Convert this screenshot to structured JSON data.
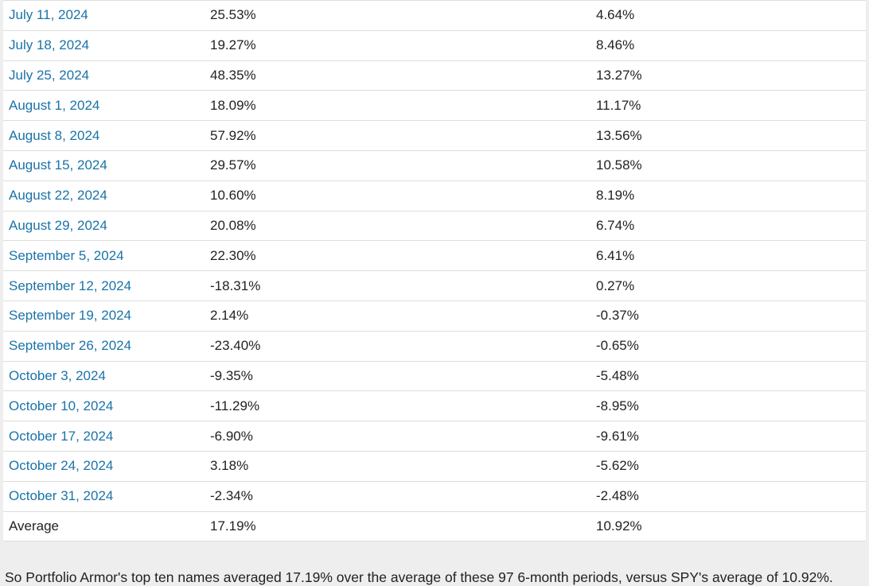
{
  "table": {
    "rows": [
      {
        "date": "July 11, 2024",
        "top_ten": "25.53%",
        "spy": "4.64%"
      },
      {
        "date": "July 18, 2024",
        "top_ten": "19.27%",
        "spy": "8.46%"
      },
      {
        "date": "July 25, 2024",
        "top_ten": "48.35%",
        "spy": "13.27%"
      },
      {
        "date": "August 1, 2024",
        "top_ten": "18.09%",
        "spy": "11.17%"
      },
      {
        "date": "August 8, 2024",
        "top_ten": "57.92%",
        "spy": "13.56%"
      },
      {
        "date": "August 15, 2024",
        "top_ten": "29.57%",
        "spy": "10.58%"
      },
      {
        "date": "August 22, 2024",
        "top_ten": "10.60%",
        "spy": "8.19%"
      },
      {
        "date": "August 29, 2024",
        "top_ten": "20.08%",
        "spy": "6.74%"
      },
      {
        "date": "September 5, 2024",
        "top_ten": "22.30%",
        "spy": "6.41%"
      },
      {
        "date": "September 12, 2024",
        "top_ten": "-18.31%",
        "spy": "0.27%"
      },
      {
        "date": "September 19, 2024",
        "top_ten": "2.14%",
        "spy": "-0.37%"
      },
      {
        "date": "September 26, 2024",
        "top_ten": "-23.40%",
        "spy": "-0.65%"
      },
      {
        "date": "October 3, 2024",
        "top_ten": "-9.35%",
        "spy": "-5.48%"
      },
      {
        "date": "October 10, 2024",
        "top_ten": "-11.29%",
        "spy": "-8.95%"
      },
      {
        "date": "October 17, 2024",
        "top_ten": "-6.90%",
        "spy": "-9.61%"
      },
      {
        "date": "October 24, 2024",
        "top_ten": "3.18%",
        "spy": "-5.62%"
      },
      {
        "date": "October 31, 2024",
        "top_ten": "-2.34%",
        "spy": "-2.48%"
      }
    ],
    "average": {
      "label": "Average",
      "top_ten": "17.19%",
      "spy": "10.92%"
    }
  },
  "summary": "So Portfolio Armor's top ten names averaged 17.19% over the average of these 97 6-month periods, versus SPY's average of 10.92%.",
  "colors": {
    "link": "#1a73a8",
    "text": "#222222",
    "border": "#dddddd",
    "page_bg": "#eeeeee",
    "table_bg": "#ffffff"
  }
}
